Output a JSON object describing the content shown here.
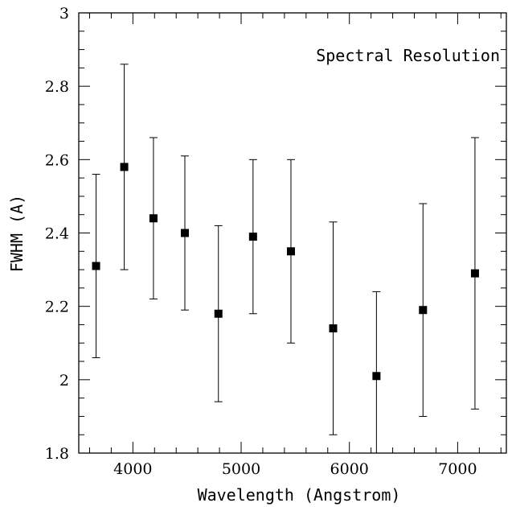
{
  "chart_data": {
    "type": "scatter",
    "annotation": "Spectral Resolution",
    "xlabel": "Wavelength (Angstrom)",
    "ylabel": "FWHM (A)",
    "xlim": [
      3500,
      7450
    ],
    "ylim": [
      1.8,
      3.0
    ],
    "x_major_ticks": [
      4000,
      5000,
      6000,
      7000
    ],
    "x_minor_step": 200,
    "y_major_ticks": [
      1.8,
      2.0,
      2.2,
      2.4,
      2.6,
      2.8,
      3.0
    ],
    "y_minor_step": 0.05,
    "x_tick_labels": [
      "4000",
      "5000",
      "6000",
      "7000"
    ],
    "y_tick_labels": [
      "1.8",
      "2",
      "2.2",
      "2.4",
      "2.6",
      "2.8",
      "3"
    ],
    "grid": false,
    "points": [
      {
        "x": 3660,
        "y": 2.31,
        "err_lo": 2.06,
        "err_hi": 2.56
      },
      {
        "x": 3920,
        "y": 2.58,
        "err_lo": 2.3,
        "err_hi": 2.86
      },
      {
        "x": 4190,
        "y": 2.44,
        "err_lo": 2.22,
        "err_hi": 2.66
      },
      {
        "x": 4480,
        "y": 2.4,
        "err_lo": 2.19,
        "err_hi": 2.61
      },
      {
        "x": 4790,
        "y": 2.18,
        "err_lo": 1.94,
        "err_hi": 2.42
      },
      {
        "x": 5110,
        "y": 2.39,
        "err_lo": 2.18,
        "err_hi": 2.6
      },
      {
        "x": 5460,
        "y": 2.35,
        "err_lo": 2.1,
        "err_hi": 2.6
      },
      {
        "x": 5850,
        "y": 2.14,
        "err_lo": 1.85,
        "err_hi": 2.43
      },
      {
        "x": 6250,
        "y": 2.01,
        "err_lo": 1.8,
        "err_hi": 2.24
      },
      {
        "x": 6680,
        "y": 2.19,
        "err_lo": 1.9,
        "err_hi": 2.48
      },
      {
        "x": 7160,
        "y": 2.29,
        "err_lo": 1.92,
        "err_hi": 2.66
      }
    ]
  }
}
